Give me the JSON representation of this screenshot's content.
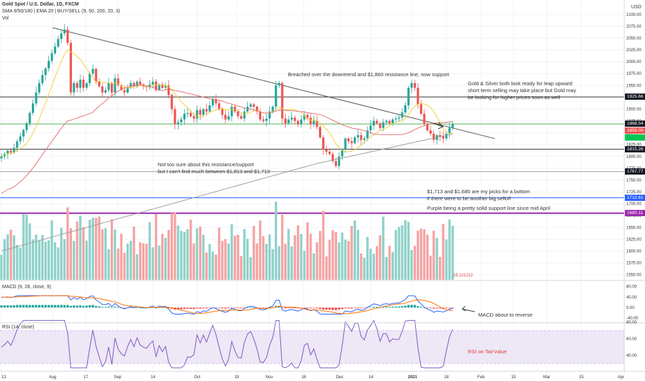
{
  "colors": {
    "up": "#26a69a",
    "down": "#ef5350",
    "up_volume": "#8fd1c9",
    "down_volume": "#f5a3a3",
    "sma9": "#f4d03f",
    "sma50": "#e57373",
    "sma200": "#9e9e9e",
    "purple": "#9c27b0",
    "blue": "#2962ff",
    "green_line": "#4caf50",
    "macd": "#2962ff",
    "signal": "#ff6d00",
    "rsi": "#7e57c2",
    "rsi_band": "#ede7f6"
  },
  "legend": {
    "title": "Gold Spot / U.S. Dollar, 1D, FXCM",
    "indicators": "SMA 9/50/180 | EMA 20 | BUY/SELL (9, 50, 200, 20, 3)",
    "vol": "Vol",
    "macd": "MACD (9, 26, close, 9)",
    "rsi": "RSI (14, close)",
    "currency": "USD"
  },
  "annotations": {
    "breached": "Breached over the downtrend and $1,860 resistance line, now support",
    "gold_silver": [
      "Gold & Silver both look ready for leap upward",
      "short term selling may take place but Gold may",
      "be looking for higher prices soon as well"
    ],
    "not_sure": [
      "Not too sure about this resistance/support",
      "but I can't find much between $1,813 and $1,713"
    ],
    "picks": [
      "$1,713 and $1,680  are my picks for a bottom",
      "if there were to be another big selloff"
    ],
    "purple": "Purple being a pretty solid support line since mid April",
    "macd": "MACD about to reverse",
    "rsi": "RSI on 'fair'value"
  },
  "price_tags": [
    {
      "label": "1925.66",
      "price": 1925.66,
      "color": "#131722"
    },
    {
      "label": "1868.54",
      "price": 1868.54,
      "color": "#131722"
    },
    {
      "label": "1855.00",
      "price": 1855.0,
      "color": "#ef5350"
    },
    {
      "label": "1815.26",
      "price": 1815.26,
      "color": "#131722"
    },
    {
      "label": "1767.77",
      "price": 1767.77,
      "color": "#131722"
    },
    {
      "label": "1712.61",
      "price": 1712.61,
      "color": "#2962ff"
    },
    {
      "label": "1680.11",
      "price": 1680.11,
      "color": "#9c27b0"
    }
  ],
  "chart_data": {
    "type": "candlestick",
    "instrument": "Gold Spot / U.S. Dollar",
    "timeframe": "1D",
    "x_ticks": [
      "13",
      "Aug",
      "17",
      "Sep",
      "14",
      "Oct",
      "19",
      "Nov",
      "16",
      "Dec",
      "14",
      "2021",
      "18",
      "Feb",
      "15",
      "Mar",
      "15",
      "Apr"
    ],
    "y_ticks": [
      2100,
      2075,
      2050,
      2025,
      2000,
      1975,
      1950,
      1925,
      1900,
      1875,
      1850,
      1825,
      1800,
      1775,
      1750,
      1725,
      1700,
      1675,
      1650,
      1625,
      1600,
      1575,
      1550
    ],
    "y_range": [
      1545,
      2110
    ],
    "close_series": [
      1800,
      1805,
      1812,
      1808,
      1818,
      1832,
      1842,
      1856,
      1870,
      1892,
      1912,
      1935,
      1955,
      1972,
      1986,
      2002,
      2018,
      2032,
      2048,
      2060,
      2068,
      2040,
      1935,
      1955,
      1945,
      1962,
      1945,
      1955,
      1975,
      1985,
      1958,
      1948,
      1935,
      1940,
      1955,
      1935,
      1965,
      1950,
      1940,
      1935,
      1945,
      1955,
      1948,
      1958,
      1952,
      1948,
      1946,
      1952,
      1958,
      1940,
      1952,
      1945,
      1950,
      1930,
      1900,
      1868,
      1872,
      1878,
      1890,
      1892,
      1885,
      1880,
      1898,
      1888,
      1900,
      1895,
      1908,
      1920,
      1912,
      1900,
      1888,
      1878,
      1885,
      1905,
      1895,
      1885,
      1880,
      1895,
      1905,
      1910,
      1905,
      1895,
      1878,
      1875,
      1880,
      1895,
      1905,
      1950,
      1955,
      1880,
      1870,
      1878,
      1882,
      1875,
      1868,
      1878,
      1888,
      1882,
      1868,
      1875,
      1862,
      1840,
      1815,
      1810,
      1805,
      1790,
      1780,
      1800,
      1815,
      1838,
      1832,
      1828,
      1840,
      1845,
      1835,
      1838,
      1855,
      1865,
      1875,
      1870,
      1860,
      1872,
      1875,
      1870,
      1878,
      1880,
      1882,
      1893,
      1908,
      1945,
      1955,
      1945,
      1910,
      1890,
      1868,
      1855,
      1848,
      1835,
      1845,
      1842,
      1838,
      1848,
      1860,
      1868
    ],
    "series": [
      {
        "name": "SMA 9"
      },
      {
        "name": "SMA 50"
      },
      {
        "name": "SMA 180"
      }
    ],
    "horizontal_levels": [
      1925.66,
      1868.54,
      1815.26,
      1767.77,
      1712.61,
      1680.11
    ],
    "trendline": {
      "from": {
        "x_tick": "Aug",
        "price": 2072
      },
      "to": {
        "x_tick": "Feb",
        "price": 1845
      }
    },
    "volume_label": "15.121212",
    "macd": {
      "y_ticks": [
        80.0,
        40.0,
        0.0,
        -40.0
      ]
    },
    "rsi": {
      "y_ticks": [
        80.0,
        60.0,
        40.0
      ],
      "band": [
        30,
        70
      ]
    }
  }
}
